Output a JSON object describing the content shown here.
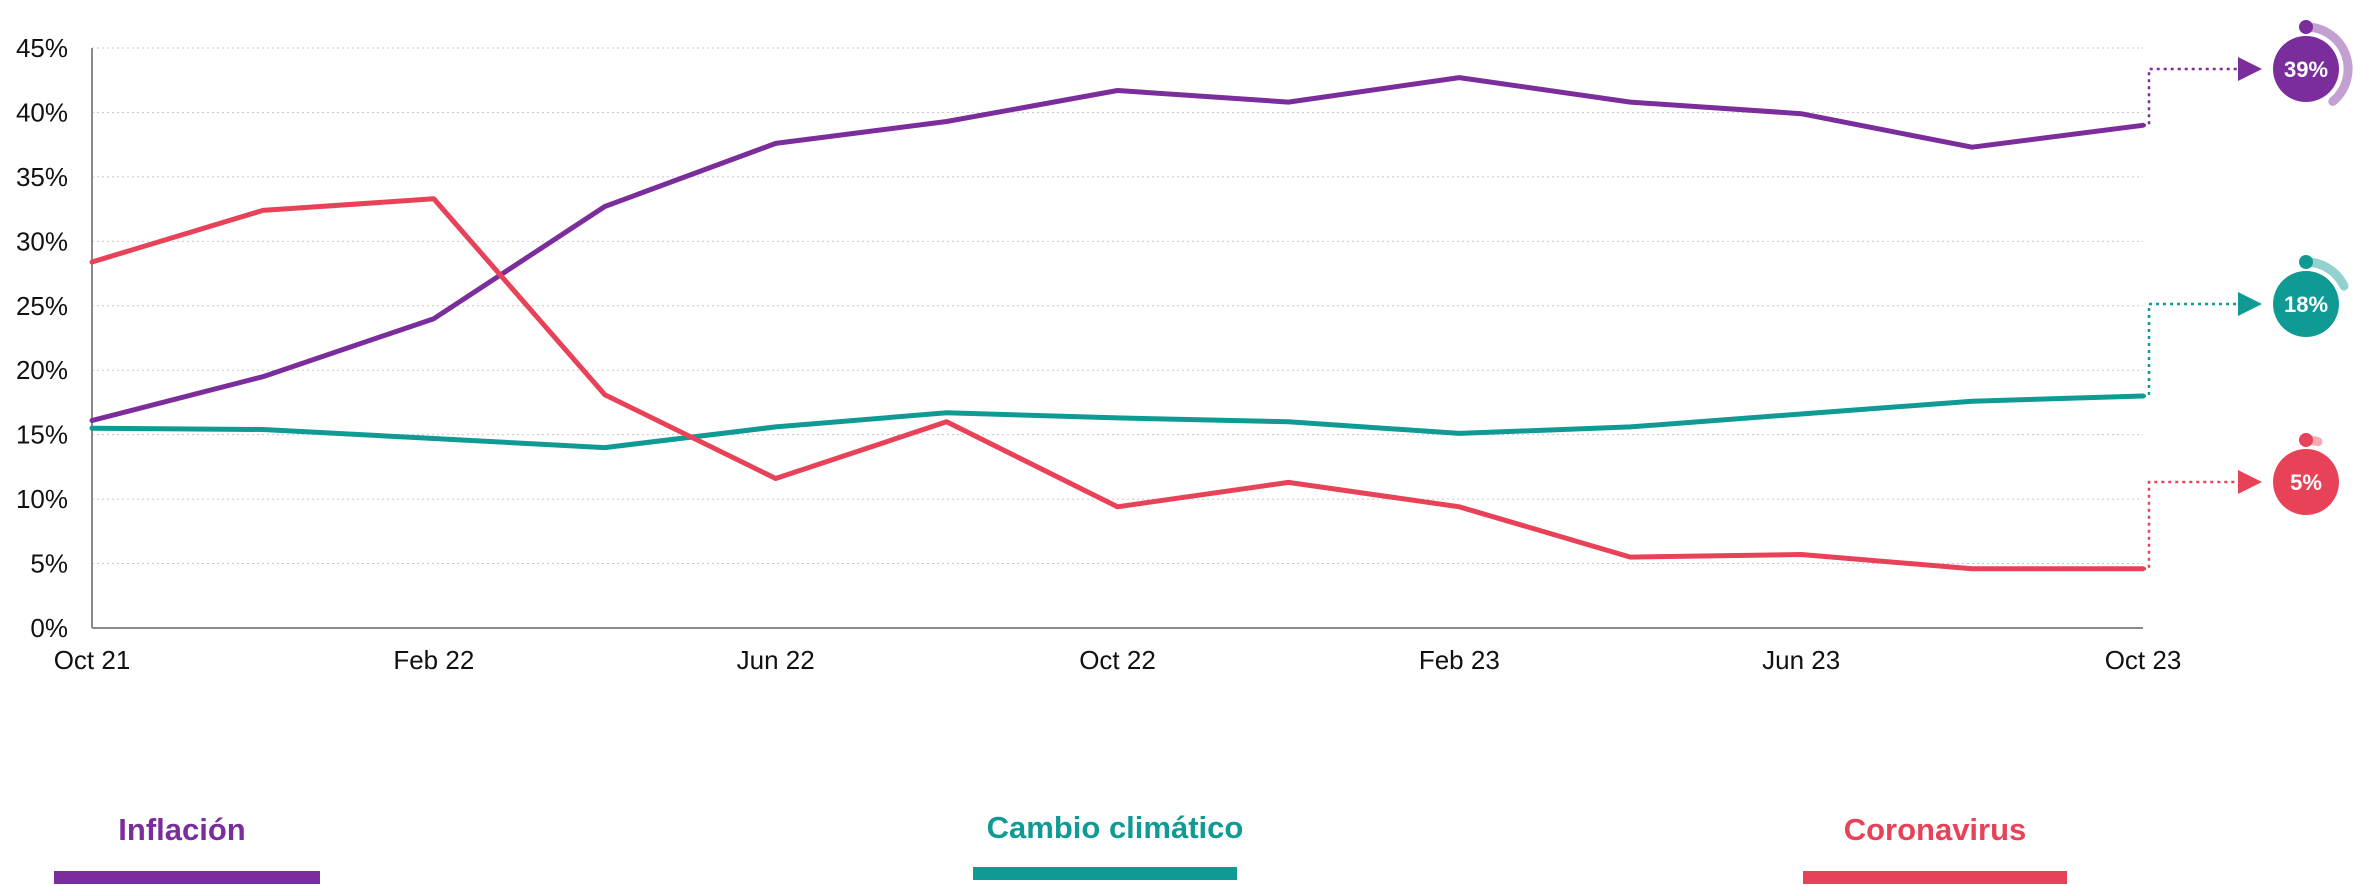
{
  "chart_data": {
    "type": "line",
    "title": "",
    "xlabel": "",
    "ylabel": "",
    "x": [
      "Oct 21",
      "Dec 21",
      "Feb 22",
      "Apr 22",
      "Jun 22",
      "Aug 22",
      "Oct 22",
      "Dec 22",
      "Feb 23",
      "Apr 23",
      "Jun 23",
      "Aug 23",
      "Oct 23"
    ],
    "x_tick_labels": [
      "Oct 21",
      "Feb 22",
      "Jun 22",
      "Oct 22",
      "Feb 23",
      "Jun 23",
      "Oct 23"
    ],
    "y_tick_labels": [
      "0%",
      "5%",
      "10%",
      "15%",
      "20%",
      "25%",
      "30%",
      "35%",
      "40%",
      "45%"
    ],
    "ylim": [
      0,
      45
    ],
    "grid": "horizontal dotted",
    "legend_position": "bottom",
    "series": [
      {
        "name": "Inflación",
        "color": "#7B2D9B",
        "values": [
          16.1,
          19.5,
          24.0,
          32.7,
          37.6,
          39.3,
          41.7,
          40.8,
          42.7,
          40.8,
          39.9,
          37.3,
          39.0
        ],
        "end_label": "39%"
      },
      {
        "name": "Cambio climático",
        "color": "#0F9A93",
        "values": [
          15.5,
          15.4,
          14.7,
          14.0,
          15.6,
          16.7,
          16.3,
          16.0,
          15.1,
          15.6,
          16.6,
          17.6,
          18.0
        ],
        "end_label": "18%"
      },
      {
        "name": "Coronavirus",
        "color": "#E84258",
        "values": [
          28.4,
          32.4,
          33.3,
          18.1,
          11.6,
          16.0,
          9.4,
          11.3,
          9.4,
          5.5,
          5.7,
          4.6,
          4.6
        ],
        "end_label": "5%"
      }
    ]
  }
}
